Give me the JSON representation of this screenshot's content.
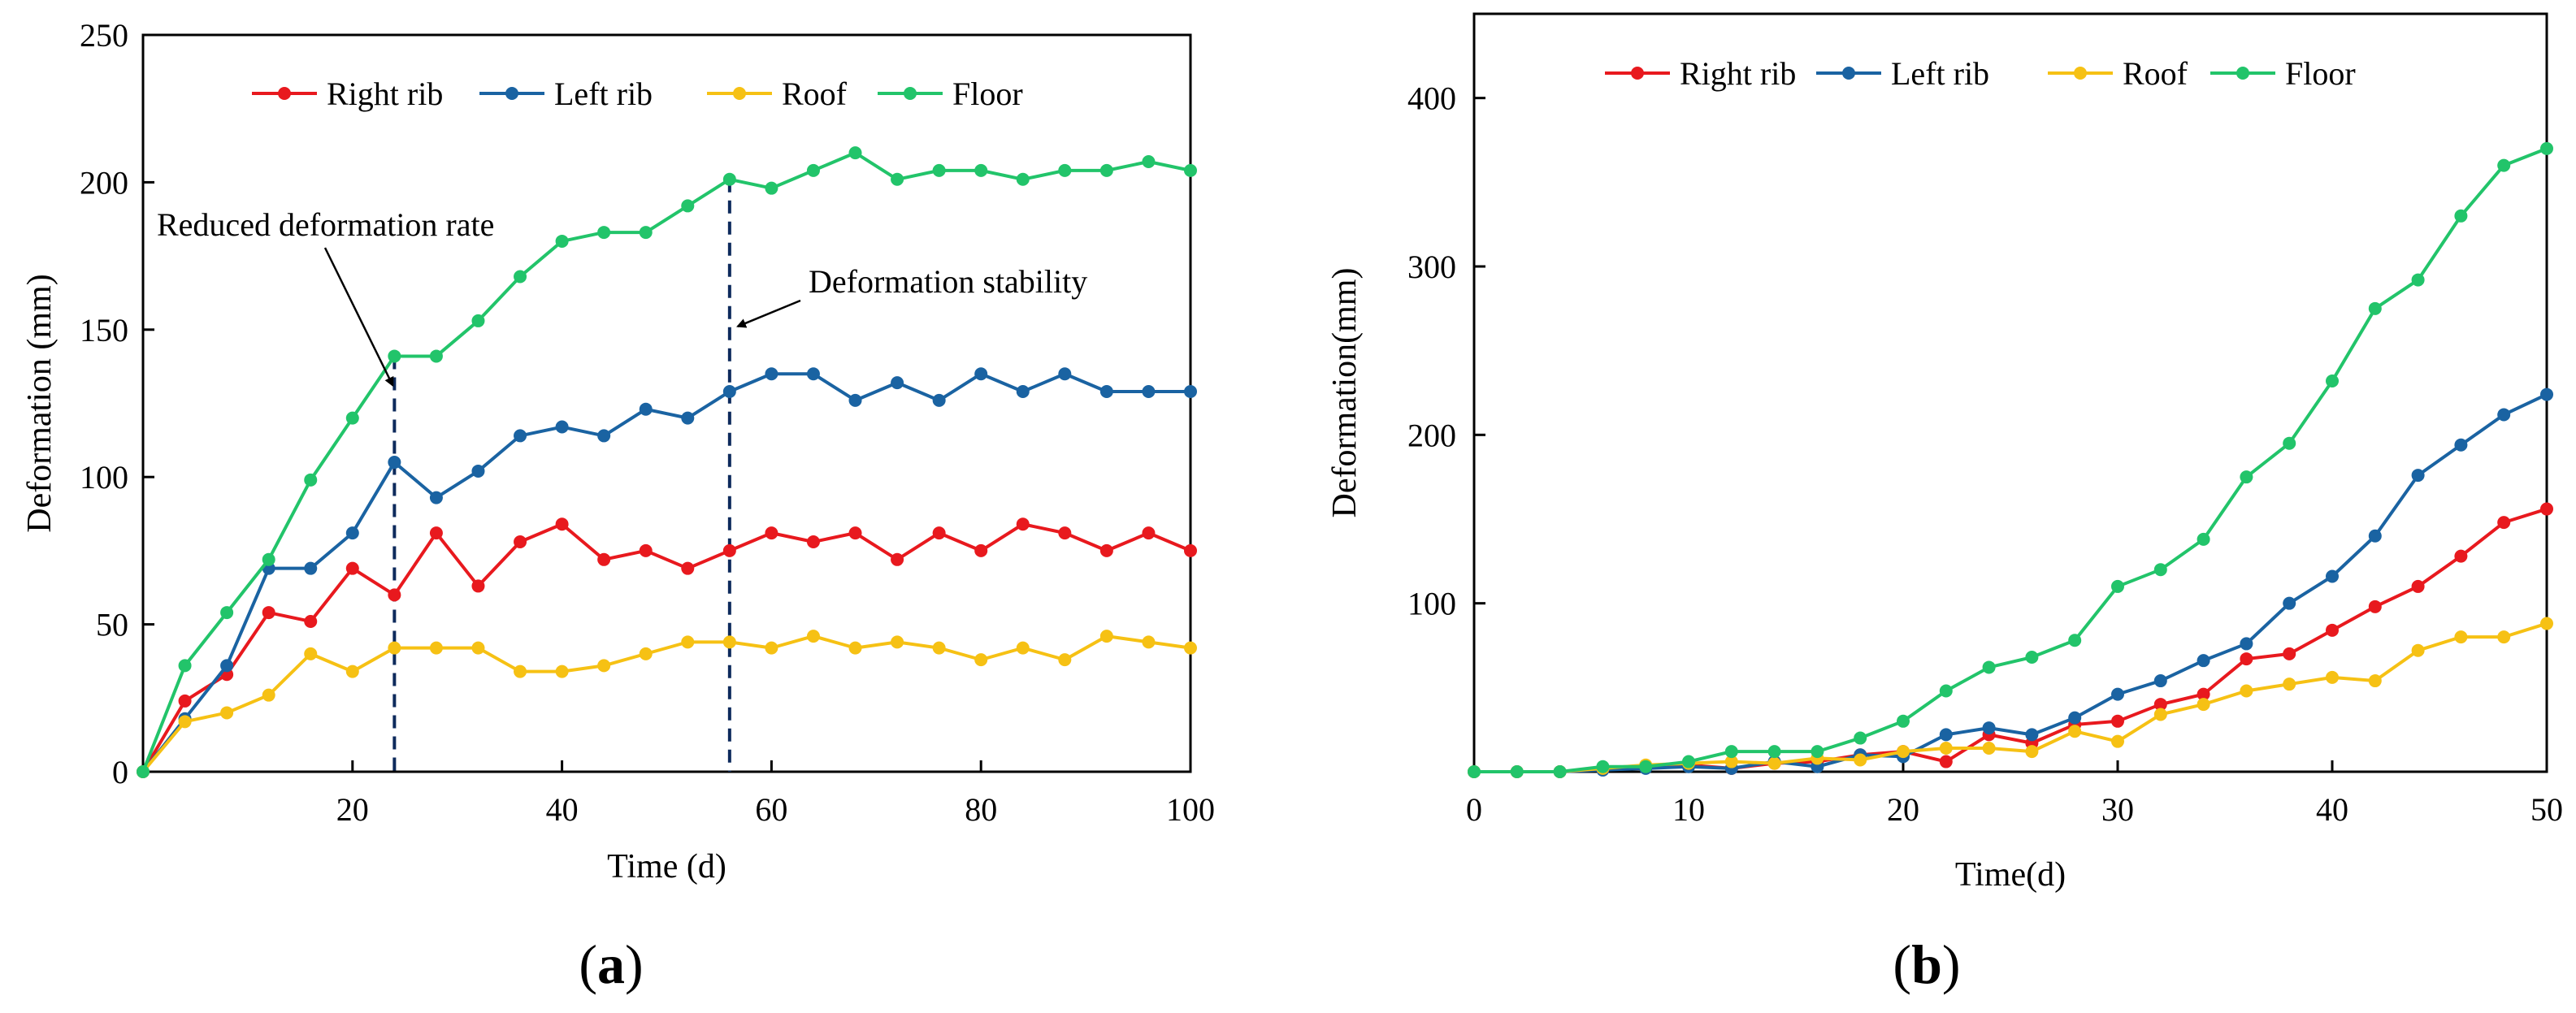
{
  "figure": {
    "panel_a_label": "a",
    "panel_b_label": "b"
  },
  "colors": {
    "Right rib": "#e8191e",
    "Left rib": "#1a63a2",
    "Roof": "#f6c114",
    "Floor": "#22c46a"
  },
  "chart_data": [
    {
      "id": "a",
      "type": "line",
      "title": "",
      "xlabel": "Time (d)",
      "ylabel": "Deformation (mm)",
      "xlim": [
        0,
        100
      ],
      "ylim": [
        0,
        250
      ],
      "xticks": [
        20,
        40,
        60,
        80,
        100
      ],
      "yticks": [
        0,
        50,
        100,
        150,
        200,
        250
      ],
      "legend_position": "top",
      "x": [
        0,
        4,
        8,
        12,
        16,
        20,
        24,
        28,
        32,
        36,
        40,
        44,
        48,
        52,
        56,
        60,
        64,
        68,
        72,
        76,
        80,
        84,
        88,
        92,
        96,
        100
      ],
      "series": [
        {
          "name": "Right rib",
          "values": [
            0,
            24,
            33,
            54,
            51,
            69,
            60,
            81,
            63,
            78,
            84,
            72,
            75,
            69,
            75,
            81,
            78,
            81,
            72,
            81,
            75,
            84,
            81,
            75,
            81,
            75
          ]
        },
        {
          "name": "Left rib",
          "values": [
            0,
            18,
            36,
            69,
            69,
            81,
            105,
            93,
            102,
            114,
            117,
            114,
            123,
            120,
            129,
            135,
            135,
            126,
            132,
            126,
            135,
            129,
            135,
            129,
            129,
            129
          ]
        },
        {
          "name": "Roof",
          "values": [
            0,
            17,
            20,
            26,
            40,
            34,
            42,
            42,
            42,
            34,
            34,
            36,
            40,
            44,
            44,
            42,
            46,
            42,
            44,
            42,
            38,
            42,
            38,
            46,
            44,
            42
          ]
        },
        {
          "name": "Floor",
          "values": [
            0,
            36,
            54,
            72,
            99,
            120,
            141,
            141,
            153,
            168,
            180,
            183,
            183,
            192,
            201,
            198,
            204,
            210,
            201,
            204,
            204,
            201,
            204,
            204,
            207,
            204
          ]
        }
      ],
      "vlines": [
        24,
        56
      ],
      "annotations": [
        {
          "text": "Reduced deformation rate",
          "target_x": 24,
          "target_y": 125
        },
        {
          "text": "Deformation stability",
          "target_x": 56,
          "target_y": 150
        }
      ]
    },
    {
      "id": "b",
      "type": "line",
      "title": "",
      "xlabel": "Time(d)",
      "ylabel": "Deformation(mm)",
      "xlim": [
        0,
        50
      ],
      "ylim": [
        0,
        450
      ],
      "xticks": [
        0,
        10,
        20,
        30,
        40,
        50
      ],
      "yticks": [
        100,
        200,
        300,
        400
      ],
      "legend_position": "top",
      "x": [
        0,
        2,
        4,
        6,
        8,
        10,
        12,
        14,
        16,
        18,
        20,
        22,
        24,
        26,
        28,
        30,
        32,
        34,
        36,
        38,
        40,
        42,
        44,
        46,
        48,
        50
      ],
      "series": [
        {
          "name": "Right rib",
          "values": [
            0,
            0,
            0,
            2,
            3,
            4,
            2,
            5,
            6,
            10,
            12,
            6,
            22,
            17,
            28,
            30,
            40,
            46,
            67,
            70,
            84,
            98,
            110,
            128,
            148,
            156
          ]
        },
        {
          "name": "Left rib",
          "values": [
            0,
            0,
            0,
            1,
            2,
            3,
            2,
            6,
            3,
            10,
            9,
            22,
            26,
            22,
            32,
            46,
            54,
            66,
            76,
            100,
            116,
            140,
            176,
            194,
            212,
            224
          ]
        },
        {
          "name": "Roof",
          "values": [
            0,
            0,
            0,
            2,
            4,
            5,
            6,
            5,
            8,
            7,
            12,
            14,
            14,
            12,
            24,
            18,
            34,
            40,
            48,
            52,
            56,
            54,
            72,
            80,
            80,
            88
          ]
        },
        {
          "name": "Floor",
          "values": [
            0,
            0,
            0,
            3,
            3,
            6,
            12,
            12,
            12,
            20,
            30,
            48,
            62,
            68,
            78,
            110,
            120,
            138,
            175,
            195,
            232,
            275,
            292,
            330,
            360,
            370
          ]
        }
      ]
    }
  ]
}
